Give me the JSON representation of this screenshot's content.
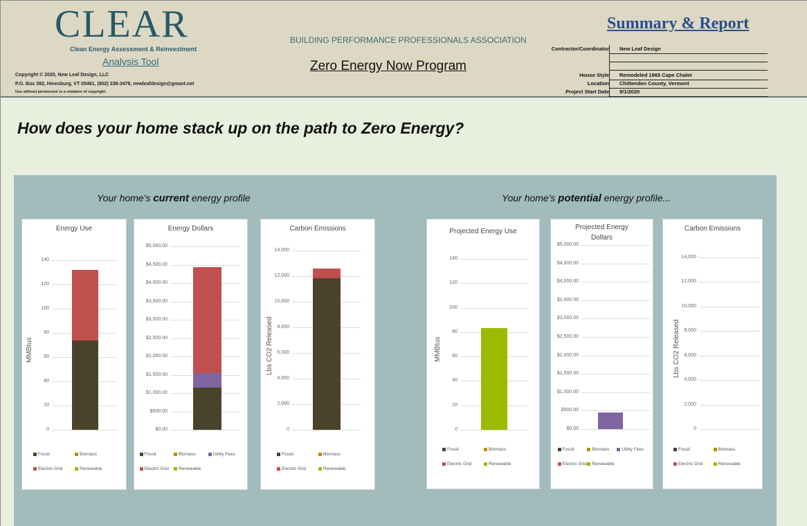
{
  "header": {
    "logo": "CLEAR",
    "logo_subtitle": "Clean Energy Assessment & Reinvestment",
    "analysis_tool": "Analysis Tool",
    "copyright": "Copyright © 2020, New Leaf Design, LLC",
    "address": "P.O. Box 392, Hinesburg, VT  05461, (802) 238-3478, newleafdesign@gmavt.net",
    "notice": "Use without permission is a violation of copyright.",
    "association": "BUILDING PERFORMANCE PROFESSIONALS ASSOCIATION",
    "program": "Zero Energy Now Program",
    "report_title": "Summary & Report",
    "info": [
      {
        "label": "Contractor/Coordinator",
        "value": "New Leaf Design"
      },
      {
        "label": "",
        "value": ""
      },
      {
        "label": "",
        "value": ""
      },
      {
        "label": "House Style",
        "value": "Remodeled 1965 Cape Chalet"
      },
      {
        "label": "Location",
        "value": "Chittenden County, Vermont"
      },
      {
        "label": "Project Start Date",
        "value": "9/1/2020"
      }
    ]
  },
  "question": "How does your home stack up on the path to Zero Energy?",
  "sections": {
    "current_pre": "Your home's ",
    "current_em": "current",
    "current_post": " energy profile",
    "potential_pre": "Your home's ",
    "potential_em": "potential",
    "potential_post": " energy profile..."
  },
  "colors": {
    "Fossil": "#4a432b",
    "Biomass": "#bf8f00",
    "Utility Fees": "#8064a2",
    "Electric Grid": "#c0504d",
    "Renewable": "#9bbb00"
  },
  "chart_data": [
    {
      "type": "bar",
      "stacked": true,
      "title": "Energy Use",
      "ylabel": "MMBtus",
      "ylim": [
        0,
        140
      ],
      "ticks": [
        "0",
        "20",
        "40",
        "60",
        "80",
        "100",
        "120",
        "140"
      ],
      "tick_values": [
        0,
        20,
        40,
        60,
        80,
        100,
        120,
        140
      ],
      "series": [
        {
          "name": "Fossil",
          "values": [
            74
          ]
        },
        {
          "name": "Biomass",
          "values": [
            0
          ]
        },
        {
          "name": "Electric Grid",
          "values": [
            58
          ]
        },
        {
          "name": "Renewable",
          "values": [
            0
          ]
        }
      ]
    },
    {
      "type": "bar",
      "stacked": true,
      "title": "Energy Dollars",
      "ylabel": "",
      "ylim": [
        0,
        5000
      ],
      "ticks": [
        "$0.00",
        "$500.00",
        "$1,000.00",
        "$1,500.00",
        "$2,000.00",
        "$2,500.00",
        "$3,000.00",
        "$3,500.00",
        "$4,000.00",
        "$4,500.00",
        "$5,000.00"
      ],
      "tick_values": [
        0,
        500,
        1000,
        1500,
        2000,
        2500,
        3000,
        3500,
        4000,
        4500,
        5000
      ],
      "series": [
        {
          "name": "Fossil",
          "values": [
            1150
          ]
        },
        {
          "name": "Biomass",
          "values": [
            0
          ]
        },
        {
          "name": "Utility Fees",
          "values": [
            400
          ]
        },
        {
          "name": "Electric Grid",
          "values": [
            2890
          ]
        },
        {
          "name": "Renewable",
          "values": [
            0
          ]
        }
      ]
    },
    {
      "type": "bar",
      "stacked": true,
      "title": "Carbon Emissions",
      "ylabel": "Lbs CO2 Released",
      "ylim": [
        0,
        14000
      ],
      "ticks": [
        "0",
        "2,000",
        "4,000",
        "6,000",
        "8,000",
        "10,000",
        "12,000",
        "14,000"
      ],
      "tick_values": [
        0,
        2000,
        4000,
        6000,
        8000,
        10000,
        12000,
        14000
      ],
      "series": [
        {
          "name": "Fossil",
          "values": [
            11850
          ]
        },
        {
          "name": "Biomass",
          "values": [
            0
          ]
        },
        {
          "name": "Electric Grid",
          "values": [
            750
          ]
        },
        {
          "name": "Renewable",
          "values": [
            0
          ]
        }
      ]
    },
    {
      "type": "bar",
      "stacked": true,
      "title": "Projected Energy Use",
      "ylabel": "MMBtus",
      "ylim": [
        0,
        140
      ],
      "ticks": [
        "0",
        "20",
        "40",
        "60",
        "80",
        "100",
        "120",
        "140"
      ],
      "tick_values": [
        0,
        20,
        40,
        60,
        80,
        100,
        120,
        140
      ],
      "series": [
        {
          "name": "Fossil",
          "values": [
            0
          ]
        },
        {
          "name": "Biomass",
          "values": [
            0
          ]
        },
        {
          "name": "Electric Grid",
          "values": [
            0
          ]
        },
        {
          "name": "Renewable",
          "values": [
            83.5
          ]
        }
      ]
    },
    {
      "type": "bar",
      "stacked": true,
      "title": "Projected Energy Dollars",
      "ylabel": "",
      "ylim": [
        0,
        5000
      ],
      "ticks": [
        "$0.00",
        "$500.00",
        "$1,000.00",
        "$1,500.00",
        "$2,000.00",
        "$2,500.00",
        "$3,000.00",
        "$3,500.00",
        "$4,000.00",
        "$4,500.00",
        "$5,000.00"
      ],
      "tick_values": [
        0,
        500,
        1000,
        1500,
        2000,
        2500,
        3000,
        3500,
        4000,
        4500,
        5000
      ],
      "series": [
        {
          "name": "Fossil",
          "values": [
            0
          ]
        },
        {
          "name": "Biomass",
          "values": [
            0
          ]
        },
        {
          "name": "Utility Fees",
          "values": [
            450
          ]
        },
        {
          "name": "Electric Grid",
          "values": [
            0
          ]
        },
        {
          "name": "Renewable",
          "values": [
            0
          ]
        }
      ]
    },
    {
      "type": "bar",
      "stacked": true,
      "title": "Carbon Emissions",
      "ylabel": "Lbs CO2 Released",
      "ylim": [
        0,
        14000
      ],
      "ticks": [
        "0",
        "2,000",
        "4,000",
        "6,000",
        "8,000",
        "10,000",
        "12,000",
        "14,000"
      ],
      "tick_values": [
        0,
        2000,
        4000,
        6000,
        8000,
        10000,
        12000,
        14000
      ],
      "series": [
        {
          "name": "Fossil",
          "values": [
            0
          ]
        },
        {
          "name": "Biomass",
          "values": [
            0
          ]
        },
        {
          "name": "Electric Grid",
          "values": [
            0
          ]
        },
        {
          "name": "Renewable",
          "values": [
            0
          ]
        }
      ]
    }
  ]
}
